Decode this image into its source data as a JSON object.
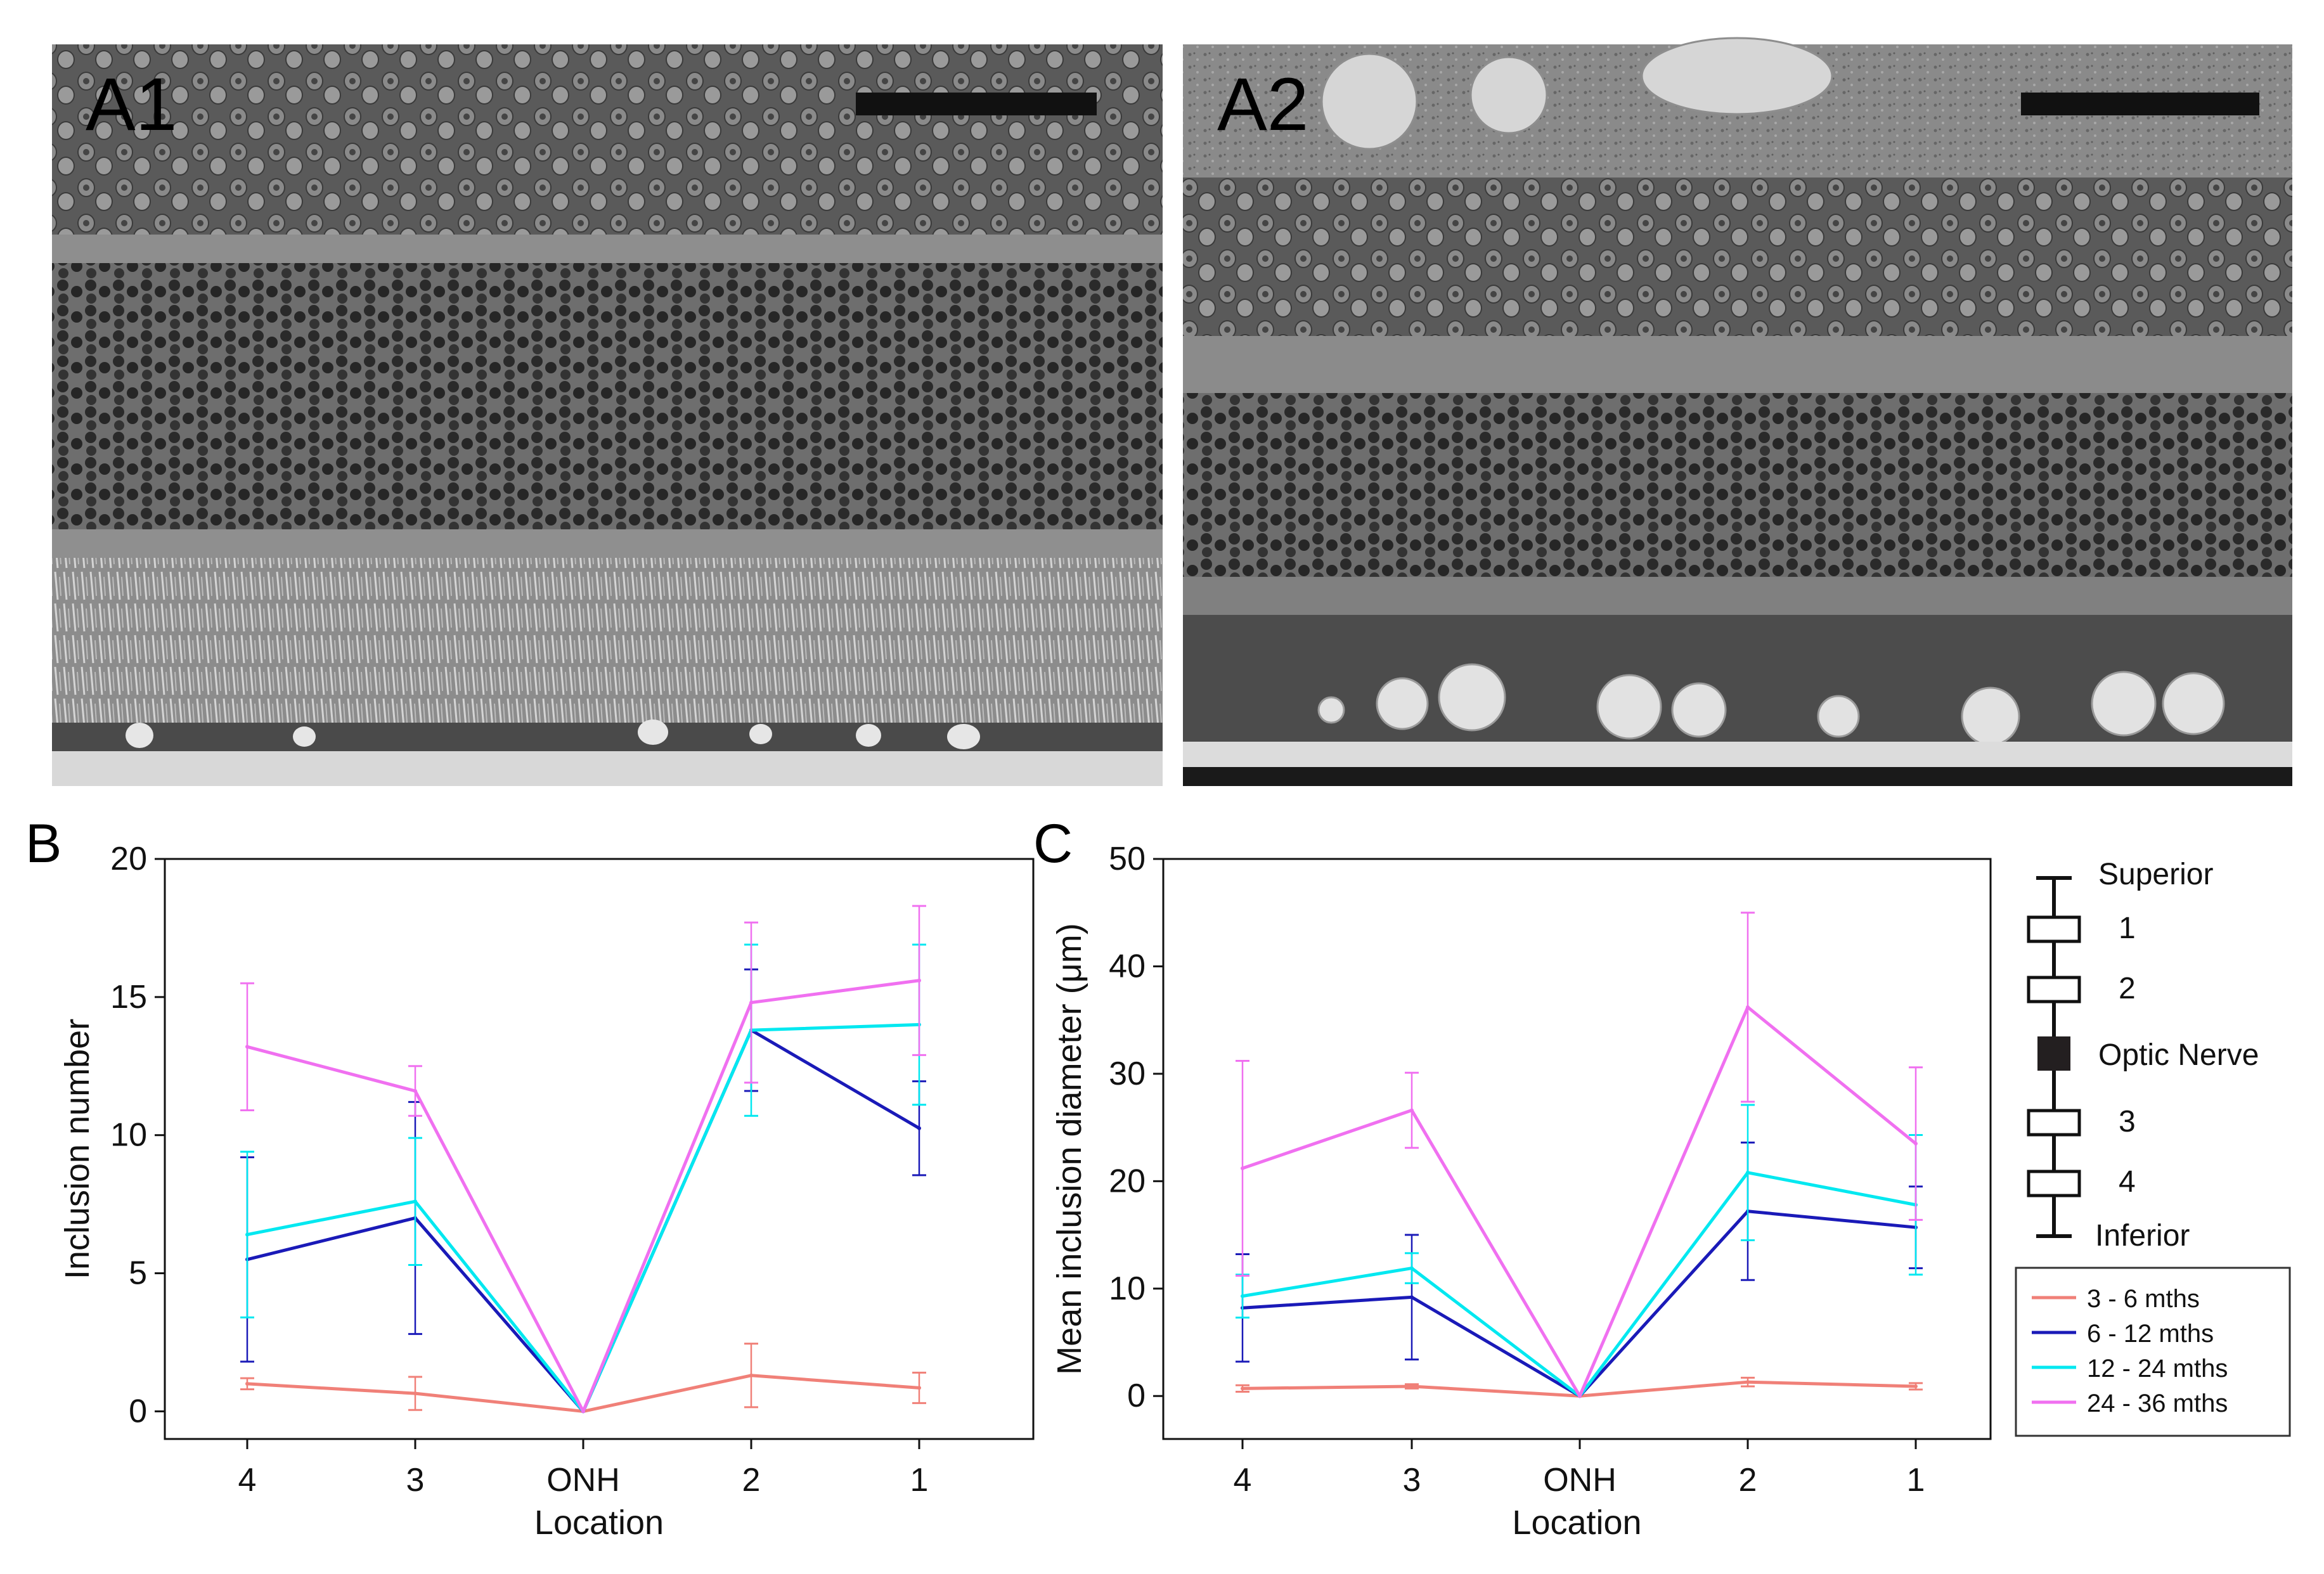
{
  "panels": {
    "a1": {
      "label": "A1"
    },
    "a2": {
      "label": "A2"
    },
    "b": {
      "label": "B"
    },
    "c": {
      "label": "C"
    }
  },
  "legend": {
    "entries": [
      "3 - 6 mths",
      "6 - 12 mths",
      "12 - 24 mths",
      "24 - 36 mths"
    ]
  },
  "location_key": {
    "superior": "Superior",
    "inferior": "Inferior",
    "items": [
      "1",
      "2",
      "Optic Nerve",
      "3",
      "4"
    ]
  },
  "colors": {
    "s1": "#f08078",
    "s2": "#1a1ab8",
    "s3": "#00e8f0",
    "s4": "#f070f0"
  },
  "chart_data": [
    {
      "type": "line",
      "title": "",
      "xlabel": "Location",
      "ylabel": "Inclusion number",
      "categories": [
        "4",
        "3",
        "ONH",
        "2",
        "1"
      ],
      "ylim": [
        -1,
        20
      ],
      "yticks": [
        0,
        5,
        10,
        15,
        20
      ],
      "series": [
        {
          "name": "3 - 6 mths",
          "values": [
            1.0,
            0.65,
            0,
            1.3,
            0.85
          ],
          "err": [
            0.2,
            0.6,
            0,
            1.15,
            0.55
          ]
        },
        {
          "name": "6 - 12 mths",
          "values": [
            5.5,
            7.0,
            0,
            13.8,
            10.25
          ],
          "err": [
            3.7,
            4.2,
            0,
            2.2,
            1.7
          ]
        },
        {
          "name": "12 - 24 mths",
          "values": [
            6.4,
            7.6,
            0,
            13.8,
            14.0
          ],
          "err": [
            3.0,
            2.3,
            0,
            3.1,
            2.9
          ]
        },
        {
          "name": "24 - 36 mths",
          "values": [
            13.2,
            11.6,
            0,
            14.8,
            15.6
          ],
          "err": [
            2.3,
            0.9,
            0,
            2.9,
            2.7
          ]
        }
      ]
    },
    {
      "type": "line",
      "title": "",
      "xlabel": "Location",
      "ylabel": "Mean inclusion diameter (μm)",
      "categories": [
        "4",
        "3",
        "ONH",
        "2",
        "1"
      ],
      "ylim": [
        -4,
        50
      ],
      "yticks": [
        0,
        10,
        20,
        30,
        40,
        50
      ],
      "series": [
        {
          "name": "3 - 6 mths",
          "values": [
            0.7,
            0.9,
            0,
            1.3,
            0.9
          ],
          "err": [
            0.3,
            0.2,
            0,
            0.4,
            0.3
          ]
        },
        {
          "name": "6 - 12 mths",
          "values": [
            8.2,
            9.2,
            0,
            17.2,
            15.7
          ],
          "err": [
            5.0,
            5.8,
            0,
            6.4,
            3.8
          ]
        },
        {
          "name": "12 - 24 mths",
          "values": [
            9.3,
            11.9,
            0,
            20.8,
            17.8
          ],
          "err": [
            2.0,
            1.4,
            0,
            6.3,
            6.5
          ]
        },
        {
          "name": "24 - 36 mths",
          "values": [
            21.2,
            26.6,
            0,
            36.2,
            23.5
          ],
          "err": [
            10.0,
            3.5,
            0,
            8.8,
            7.1
          ]
        }
      ]
    }
  ]
}
